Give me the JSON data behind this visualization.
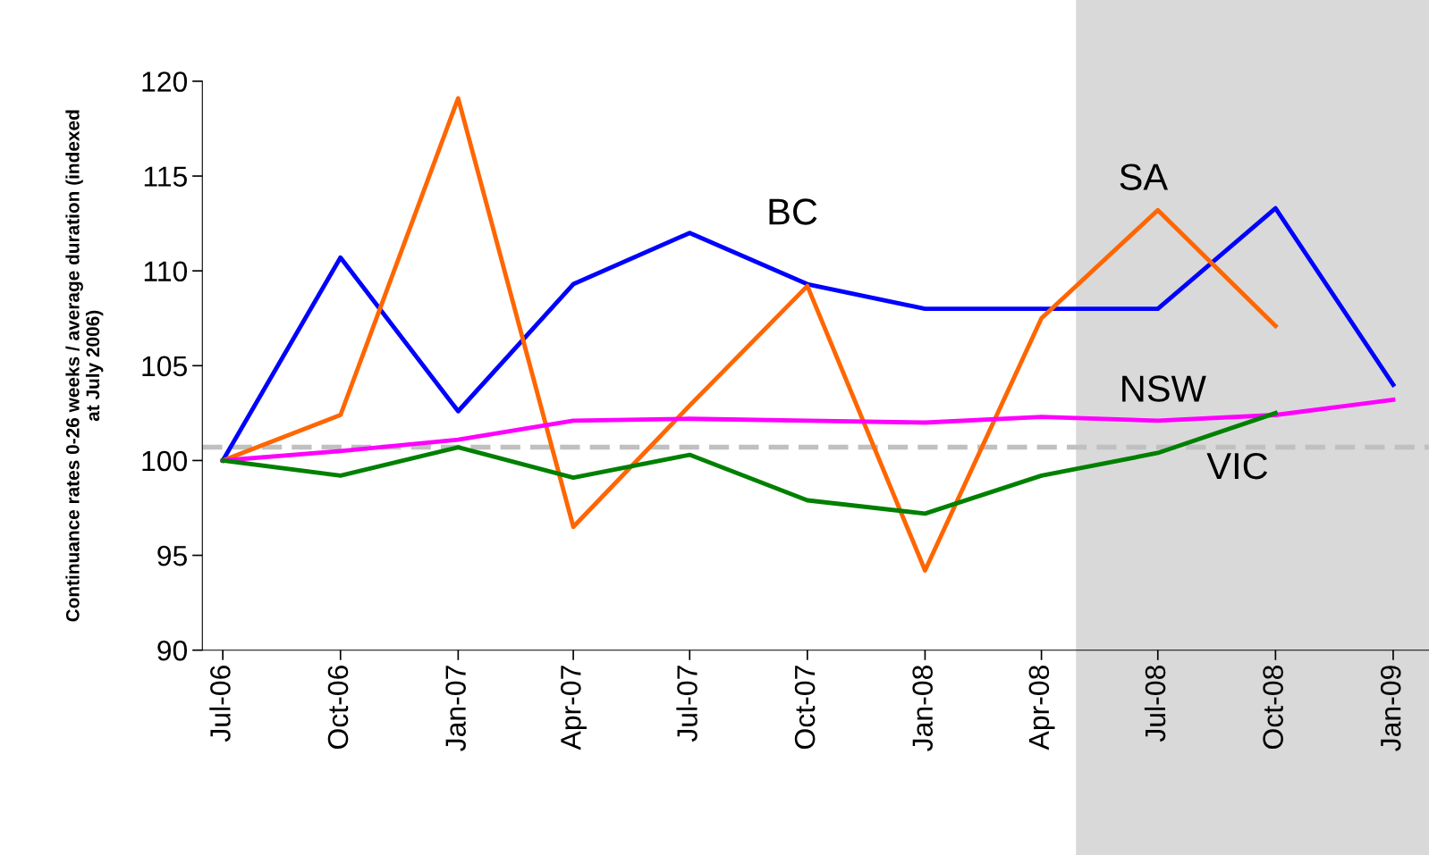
{
  "chart_data": {
    "type": "line",
    "ylabel": "Continuance rates 0-26 weeks / average duration (indexed\nat July 2006)",
    "x": [
      "2006-07-01",
      "2006-10-01",
      "2007-01-01",
      "2007-04-01",
      "2007-07-01",
      "2007-10-01",
      "2008-01-01",
      "2008-04-01",
      "2008-07-01",
      "2008-10-01",
      "2009-01-01"
    ],
    "series": [
      {
        "color": "#0000ff",
        "values": [
          100,
          110.7,
          102.6,
          109.3,
          112.0,
          109.3,
          108.0,
          108.0,
          108.0,
          113.3,
          104.0
        ]
      },
      {
        "color": "#ff6600",
        "values": [
          100,
          102.4,
          119.1,
          96.5,
          102.9,
          109.2,
          94.2,
          107.5,
          113.2,
          107.1,
          null
        ]
      },
      {
        "color": "#ff00ff",
        "values": [
          100,
          100.5,
          101.1,
          102.1,
          102.2,
          102.1,
          102.0,
          102.3,
          102.1,
          102.4,
          103.2
        ]
      },
      {
        "color": "#008000",
        "values": [
          100,
          99.2,
          100.7,
          99.1,
          100.3,
          97.9,
          97.2,
          99.2,
          100.4,
          102.5,
          null
        ]
      }
    ],
    "annotations": [
      "BC",
      "SA",
      "NSW",
      "VIC"
    ],
    "ref_lines": [
      {
        "axis": "y",
        "value": 100.7,
        "color": "#c0c0c0",
        "line_style": "dashed"
      }
    ],
    "bands": [
      {
        "axis": "x",
        "from": "2008-04-28",
        "to": "2009-01-29",
        "color": "#d9d9d9"
      }
    ],
    "xlim": [
      "2006-06-15",
      "2009-01-29"
    ],
    "xticks": [
      {
        "value": "2006-07-01",
        "label": "Jul-06"
      },
      {
        "value": "2006-10-01",
        "label": "Oct-06"
      },
      {
        "value": "2007-01-01",
        "label": "Jan-07"
      },
      {
        "value": "2007-04-01",
        "label": "Apr-07"
      },
      {
        "value": "2007-07-01",
        "label": "Jul-07"
      },
      {
        "value": "2007-10-01",
        "label": "Oct-07"
      },
      {
        "value": "2008-01-01",
        "label": "Jan-08"
      },
      {
        "value": "2008-04-01",
        "label": "Apr-08"
      },
      {
        "value": "2008-07-01",
        "label": "Jul-08"
      },
      {
        "value": "2008-10-01",
        "label": "Oct-08"
      },
      {
        "value": "2009-01-01",
        "label": "Jan-09"
      }
    ],
    "ylim": [
      90,
      120
    ],
    "yticks": [
      90,
      95,
      100,
      105,
      110,
      115,
      120
    ],
    "grid": false,
    "legend": false,
    "marker": "none",
    "line_style": "solid"
  }
}
